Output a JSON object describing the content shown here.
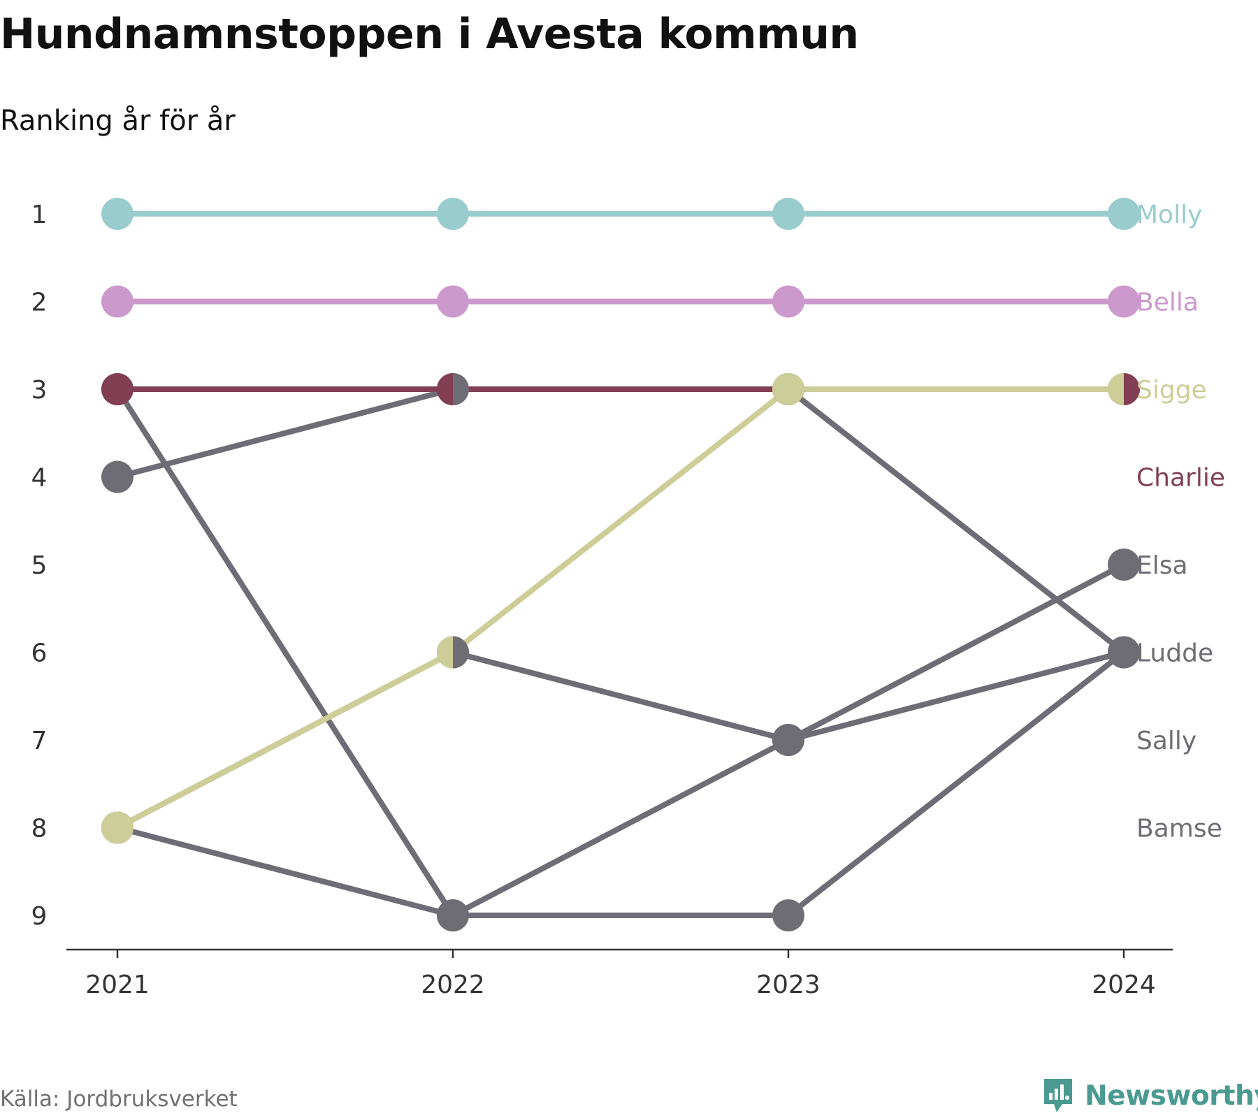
{
  "title": "Hundnamnstoppen i Avesta kommun",
  "subtitle": "Ranking år för år",
  "source": "Källa: Jordbruksverket",
  "brand": {
    "name": "Newsworthy",
    "logo_icon": "newsworthy-logo-icon",
    "color": "#4a9a91"
  },
  "chart_data": {
    "type": "line",
    "title": "Hundnamnstoppen i Avesta kommun",
    "subtitle": "Ranking år för år",
    "xlabel": "",
    "ylabel": "",
    "x": [
      "2021",
      "2022",
      "2023",
      "2024"
    ],
    "y_ticks": [
      "1",
      "2",
      "3",
      "4",
      "5",
      "6",
      "7",
      "8",
      "9"
    ],
    "ylim": [
      1,
      9
    ],
    "y_reversed": true,
    "grid": false,
    "series": [
      {
        "name": "Bamse",
        "ranks": [
          3,
          9,
          9,
          6
        ],
        "color": "#6e6d75"
      },
      {
        "name": "Sally",
        "ranks": [
          4,
          3,
          3,
          6
        ],
        "color": "#6e6d75"
      },
      {
        "name": "Elsa",
        "ranks": [
          8,
          9,
          7,
          5
        ],
        "color": "#6e6d75"
      },
      {
        "name": "Ludde",
        "ranks": [
          8,
          6,
          7,
          6
        ],
        "color": "#6e6d75"
      },
      {
        "name": "Charlie",
        "ranks": [
          3,
          3,
          3,
          3
        ],
        "color": "#823e52"
      },
      {
        "name": "Sigge",
        "ranks": [
          8,
          6,
          3,
          3
        ],
        "color": "#cdcd97"
      },
      {
        "name": "Bella",
        "ranks": [
          2,
          2,
          2,
          2
        ],
        "color": "#cc99cc"
      },
      {
        "name": "Molly",
        "ranks": [
          1,
          1,
          1,
          1
        ],
        "color": "#99cccc"
      }
    ],
    "end_labels": [
      {
        "name": "Molly",
        "rank": 1,
        "color": "#99cccc"
      },
      {
        "name": "Bella",
        "rank": 2,
        "color": "#cc99cc"
      },
      {
        "name": "Sigge",
        "rank": 3,
        "color": "#cdcd97"
      },
      {
        "name": "Charlie",
        "rank": 4,
        "color": "#823e52"
      },
      {
        "name": "Elsa",
        "rank": 5,
        "color": "#6e6d75"
      },
      {
        "name": "Ludde",
        "rank": 6,
        "color": "#6e6d75"
      },
      {
        "name": "Sally",
        "rank": 7,
        "color": "#6e6d75"
      },
      {
        "name": "Bamse",
        "rank": 8,
        "color": "#6e6d75"
      }
    ],
    "split_markers": [
      {
        "x": "2022",
        "rank": 3,
        "left": "#823e52",
        "right": "#6e6d75"
      },
      {
        "x": "2022",
        "rank": 6,
        "left": "#cdcd97",
        "right": "#6e6d75"
      },
      {
        "x": "2024",
        "rank": 3,
        "left": "#cdcd97",
        "right": "#823e52"
      }
    ]
  }
}
